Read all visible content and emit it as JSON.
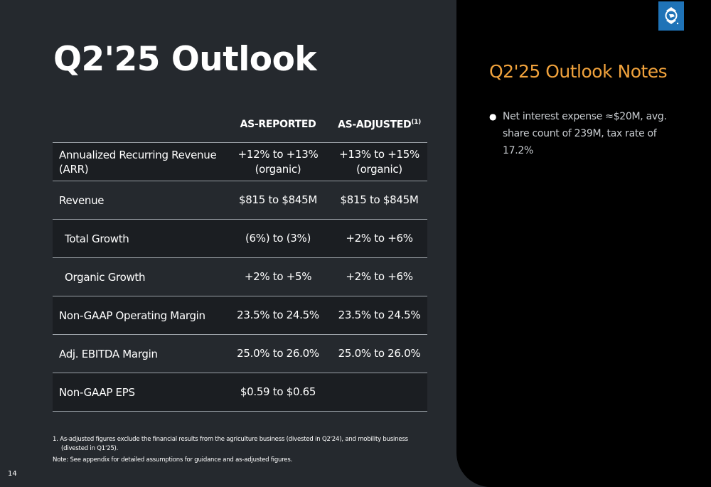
{
  "slide": {
    "title": "Q2'25 Outlook",
    "page_number": "14"
  },
  "table": {
    "headers": {
      "metric": "",
      "as_reported": "AS-REPORTED",
      "as_adjusted": "AS-ADJUSTED",
      "as_adjusted_footnote": "(1)"
    },
    "rows": [
      {
        "label": "Annualized Recurring Revenue (ARR)",
        "reported": "+12% to +13% (organic)",
        "adjusted": "+13% to +15% (organic)"
      },
      {
        "label": "Revenue",
        "reported": "$815 to $845M",
        "adjusted": "$815 to $845M"
      },
      {
        "label": "Total Growth",
        "reported": "(6%) to (3%)",
        "adjusted": "+2% to +6%"
      },
      {
        "label": "Organic Growth",
        "reported": "+2% to +5%",
        "adjusted": "+2% to +6%"
      },
      {
        "label": "Non-GAAP Operating Margin",
        "reported": "23.5% to 24.5%",
        "adjusted": "23.5% to 24.5%"
      },
      {
        "label": "Adj. EBITDA Margin",
        "reported": "25.0% to 26.0%",
        "adjusted": "25.0% to 26.0%"
      },
      {
        "label": "Non-GAAP EPS",
        "reported": "$0.59 to $0.65",
        "adjusted": ""
      }
    ]
  },
  "footnotes": {
    "fn1": "1.  As-adjusted figures exclude the financial results from the agriculture business (divested in Q2'24), and mobility business (divested in Q1'25).",
    "note": "Note: See appendix for detailed assumptions for guidance and as-adjusted figures."
  },
  "notes_panel": {
    "title": "Q2'25 Outlook Notes",
    "items": [
      "Net interest expense ≈$20M, avg. share count of 239M, tax rate of 17.2%"
    ],
    "bullet_glyph": "●"
  },
  "colors": {
    "background": "#25292e",
    "row_alt": "#1b1e22",
    "panel": "#000000",
    "accent_orange": "#f0a23c",
    "logo_blue": "#1f73b7"
  },
  "icons": {
    "logo": "company-logo-icon"
  }
}
